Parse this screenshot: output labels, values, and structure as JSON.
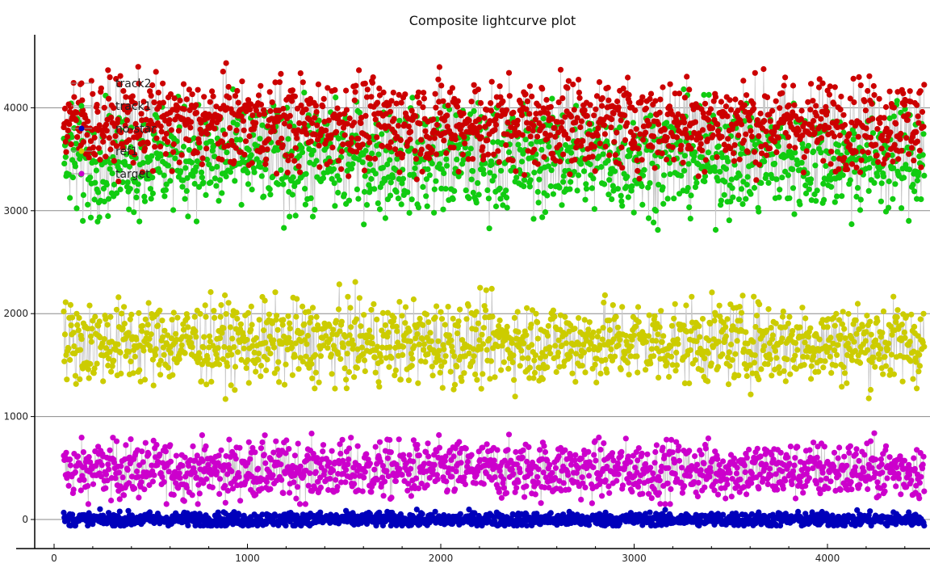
{
  "chart_data": {
    "type": "scatter",
    "title": "Composite lightcurve plot",
    "xlabel": "",
    "ylabel": "",
    "xlim": [
      -100,
      4550
    ],
    "ylim": [
      -300,
      4700
    ],
    "xticks": [
      0,
      1000,
      2000,
      3000,
      4000
    ],
    "yticks": [
      0,
      1000,
      2000,
      3000,
      4000
    ],
    "xtick_labels": [
      "0",
      "1000",
      "2000",
      "3000",
      "4000"
    ],
    "ytick_labels": [
      "0",
      "1000",
      "2000",
      "3000",
      "4000"
    ],
    "grid": "horizontal",
    "legend_position": "top-left",
    "x_range_of_points": [
      50,
      4500
    ],
    "points_per_series": 1400,
    "series": [
      {
        "name": "track2",
        "color": "#cc0000",
        "mean": 3850,
        "spread": 220,
        "min": 3000,
        "max": 4470
      },
      {
        "name": "track1",
        "color": "#11cc11",
        "mean": 3500,
        "spread": 260,
        "min": 2800,
        "max": 4180
      },
      {
        "name": "no-star",
        "color": "#0000bb",
        "mean": 0,
        "spread": 35,
        "min": -60,
        "max": 170
      },
      {
        "name": "ref1",
        "color": "#cccc00",
        "mean": 1720,
        "spread": 200,
        "min": 1170,
        "max": 2370
      },
      {
        "name": "target",
        "color": "#cc00cc",
        "mean": 480,
        "spread": 140,
        "min": 150,
        "max": 910
      }
    ],
    "line_color": "#c8c8c8"
  }
}
